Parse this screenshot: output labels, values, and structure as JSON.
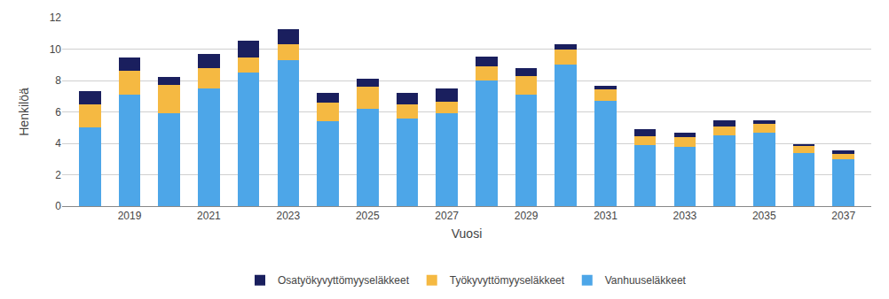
{
  "chart_data": {
    "type": "bar",
    "stacked": true,
    "xlabel": "Vuosi",
    "ylabel": "Henkilöä",
    "categories": [
      null,
      "2019",
      null,
      "2021",
      null,
      "2023",
      null,
      "2025",
      null,
      "2027",
      null,
      "2029",
      null,
      "2031",
      null,
      "2033",
      null,
      "2035",
      null,
      "2037"
    ],
    "series": [
      {
        "name": "Vanhuuseläkkeet",
        "color": "#4da6e8",
        "values": [
          5.0,
          7.1,
          5.9,
          7.5,
          8.5,
          9.3,
          5.4,
          6.2,
          5.6,
          5.9,
          8.0,
          7.1,
          9.0,
          6.7,
          3.9,
          3.8,
          4.5,
          4.7,
          3.4,
          3.0
        ]
      },
      {
        "name": "Työkyvyttömyyseläkkeet",
        "color": "#f5b942",
        "values": [
          1.5,
          1.5,
          1.8,
          1.3,
          0.95,
          1.0,
          1.2,
          1.4,
          0.9,
          0.75,
          0.9,
          1.2,
          1.0,
          0.75,
          0.55,
          0.6,
          0.55,
          0.55,
          0.45,
          0.35
        ]
      },
      {
        "name": "Osatyökyvyttömyyseläkkeet",
        "color": "#1a1f5e",
        "values": [
          0.85,
          0.85,
          0.5,
          0.9,
          1.1,
          0.95,
          0.6,
          0.5,
          0.7,
          0.85,
          0.6,
          0.5,
          0.3,
          0.2,
          0.45,
          0.3,
          0.4,
          0.2,
          0.1,
          0.2
        ]
      }
    ],
    "ylim": [
      0,
      12
    ],
    "yticks": [
      0,
      2,
      4,
      6,
      8,
      10,
      12
    ],
    "grid": true,
    "legend": "bottom"
  }
}
